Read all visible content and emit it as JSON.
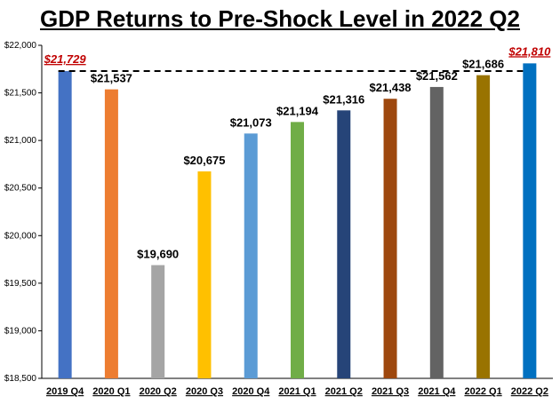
{
  "chart_data": {
    "type": "bar",
    "title": "GDP Returns to Pre-Shock Level in 2022 Q2",
    "xlabel": "",
    "ylabel": "",
    "categories": [
      "2019 Q4",
      "2020 Q1",
      "2020 Q2",
      "2020 Q3",
      "2020 Q4",
      "2021 Q1",
      "2021 Q2",
      "2021 Q3",
      "2021 Q4",
      "2022 Q1",
      "2022 Q2"
    ],
    "values": [
      21729,
      21537,
      19690,
      20675,
      21073,
      21194,
      21316,
      21438,
      21562,
      21686,
      21810
    ],
    "data_labels": [
      "$21,729",
      "$21,537",
      "$19,690",
      "$20,675",
      "$21,073",
      "$21,194",
      "$21,316",
      "$21,438",
      "$21,562",
      "$21,686",
      "$21,810"
    ],
    "highlighted_labels": [
      0,
      10
    ],
    "bar_colors": [
      "#4472c4",
      "#ed7d31",
      "#a5a5a5",
      "#ffc000",
      "#5b9bd5",
      "#70ad47",
      "#264478",
      "#9e480e",
      "#636363",
      "#997300",
      "#0070c0"
    ],
    "highlight_color": "#c00000",
    "ylim": [
      18500,
      22000
    ],
    "yticks": [
      18500,
      19000,
      19500,
      20000,
      20500,
      21000,
      21500,
      22000
    ],
    "ytick_labels": [
      "$18,500",
      "$19,000",
      "$19,500",
      "$20,000",
      "$20,500",
      "$21,000",
      "$21,500",
      "$22,000"
    ],
    "reference_line": {
      "value": 21729,
      "style": "dashed",
      "color": "#000000"
    },
    "grid": false,
    "legend": "none"
  }
}
